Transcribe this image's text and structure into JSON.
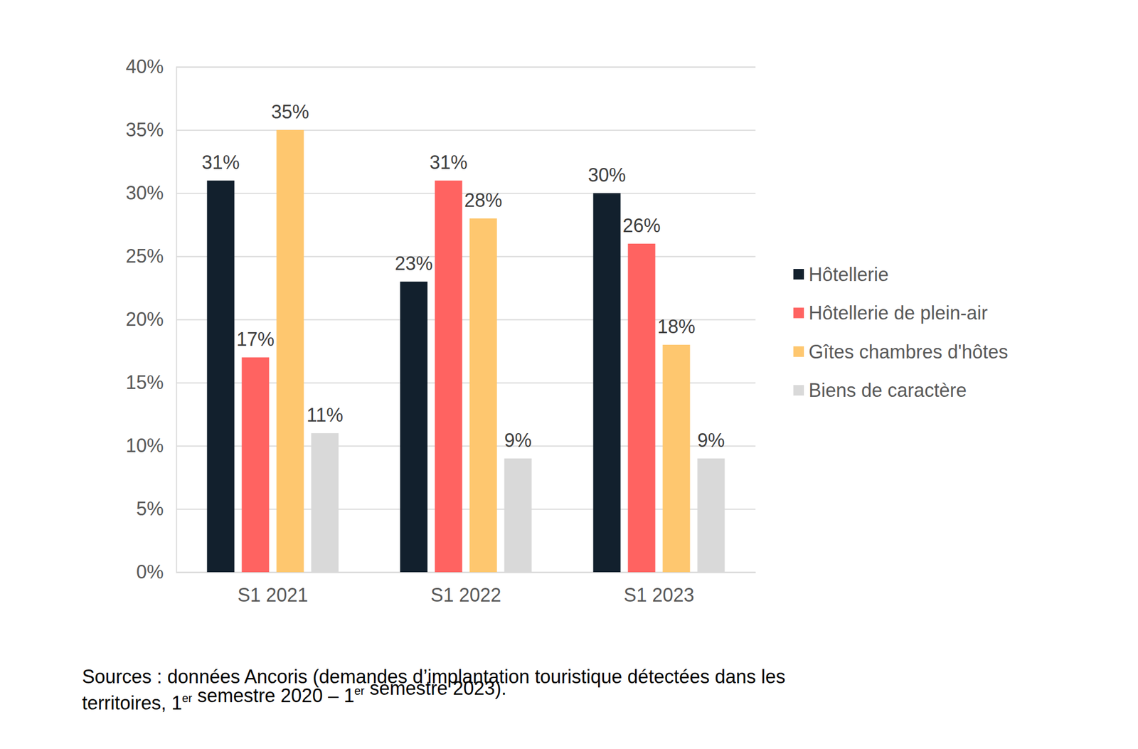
{
  "chart_data": {
    "type": "bar",
    "categories": [
      "S1 2021",
      "S1 2022",
      "S1 2023"
    ],
    "series": [
      {
        "name": "Hôtellerie",
        "color": "#12202d",
        "values": [
          31,
          23,
          30
        ],
        "value_labels": [
          "31%",
          "23%",
          "30%"
        ]
      },
      {
        "name": "Hôtellerie de plein-air",
        "color": "#ff6361",
        "values": [
          17,
          31,
          26
        ],
        "value_labels": [
          "17%",
          "31%",
          "26%"
        ]
      },
      {
        "name": "Gîtes chambres d'hôtes",
        "color": "#fec76f",
        "values": [
          35,
          28,
          18
        ],
        "value_labels": [
          "35%",
          "28%",
          "18%"
        ]
      },
      {
        "name": "Biens de caractère",
        "color": "#d9d9d9",
        "values": [
          11,
          9,
          9
        ],
        "value_labels": [
          "11%",
          "9%",
          "9%"
        ]
      }
    ],
    "ylim": [
      0,
      40
    ],
    "yticks": [
      {
        "value": 0,
        "label": "0%"
      },
      {
        "value": 5,
        "label": "5%"
      },
      {
        "value": 10,
        "label": "10%"
      },
      {
        "value": 15,
        "label": "15%"
      },
      {
        "value": 20,
        "label": "20%"
      },
      {
        "value": 25,
        "label": "25%"
      },
      {
        "value": 30,
        "label": "30%"
      },
      {
        "value": 35,
        "label": "35%"
      },
      {
        "value": 40,
        "label": "40%"
      }
    ],
    "grid": true,
    "legend": "right",
    "data_labels": true,
    "source": [
      "Sources : données Ancoris (demandes d’implantation touristique détectées dans les",
      "territoires, 1er semestre 2020 – 1er semestre 2023)."
    ]
  }
}
